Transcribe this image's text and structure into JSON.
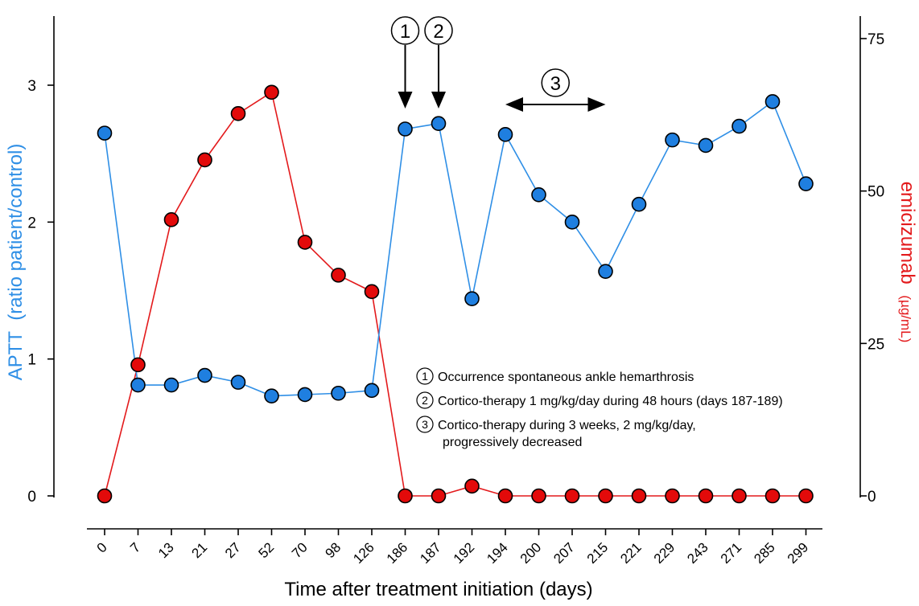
{
  "chart_data": {
    "type": "line",
    "xlabel": "Time after treatment initiation (days)",
    "categories": [
      "0",
      "7",
      "13",
      "21",
      "27",
      "52",
      "70",
      "98",
      "126",
      "186",
      "187",
      "192",
      "194",
      "200",
      "207",
      "215",
      "221",
      "229",
      "243",
      "271",
      "285",
      "299"
    ],
    "left_axis": {
      "label_main": "APTT",
      "label_sub": "(ratio patient/control)",
      "ticks": [
        "0",
        "1",
        "2",
        "3"
      ],
      "ylim": [
        0,
        3.4
      ],
      "color": "#2f8fe6"
    },
    "right_axis": {
      "label_main": "emicizumab",
      "label_sub": "(µg/mL)",
      "ticks": [
        "0",
        "25",
        "50",
        "75"
      ],
      "ylim": [
        0,
        78
      ],
      "color": "#e31a1c"
    },
    "series": [
      {
        "axis": "left",
        "color": "#2f8fe6",
        "marker_fill": "#1f7fe0",
        "values": [
          2.65,
          0.81,
          0.81,
          0.88,
          0.83,
          0.73,
          0.74,
          0.75,
          0.77,
          2.68,
          2.72,
          1.44,
          2.64,
          2.2,
          2.0,
          1.64,
          2.13,
          2.6,
          2.56,
          2.7,
          2.88,
          2.28
        ]
      },
      {
        "axis": "right",
        "color": "#e31a1c",
        "marker_fill": "#e30a0a",
        "values": [
          0,
          21.5,
          45.3,
          55.1,
          62.7,
          66.2,
          41.6,
          36.2,
          33.5,
          0,
          0,
          1.6,
          0,
          0,
          0,
          0,
          0,
          0,
          0,
          0,
          0,
          0
        ]
      }
    ],
    "events": [
      {
        "num": "1",
        "category": "186"
      },
      {
        "num": "2",
        "category": "187"
      },
      {
        "num": "3",
        "from": "194",
        "to": "215"
      }
    ],
    "legend_notes": [
      {
        "num": "1",
        "text": "Occurrence spontaneous ankle hemarthrosis"
      },
      {
        "num": "2",
        "text": "Cortico-therapy 1 mg/kg/day during 48 hours (days 187-189)"
      },
      {
        "num": "3",
        "text": "Cortico-therapy during 3 weeks, 2 mg/kg/day,",
        "text2": "progressively decreased"
      }
    ]
  }
}
